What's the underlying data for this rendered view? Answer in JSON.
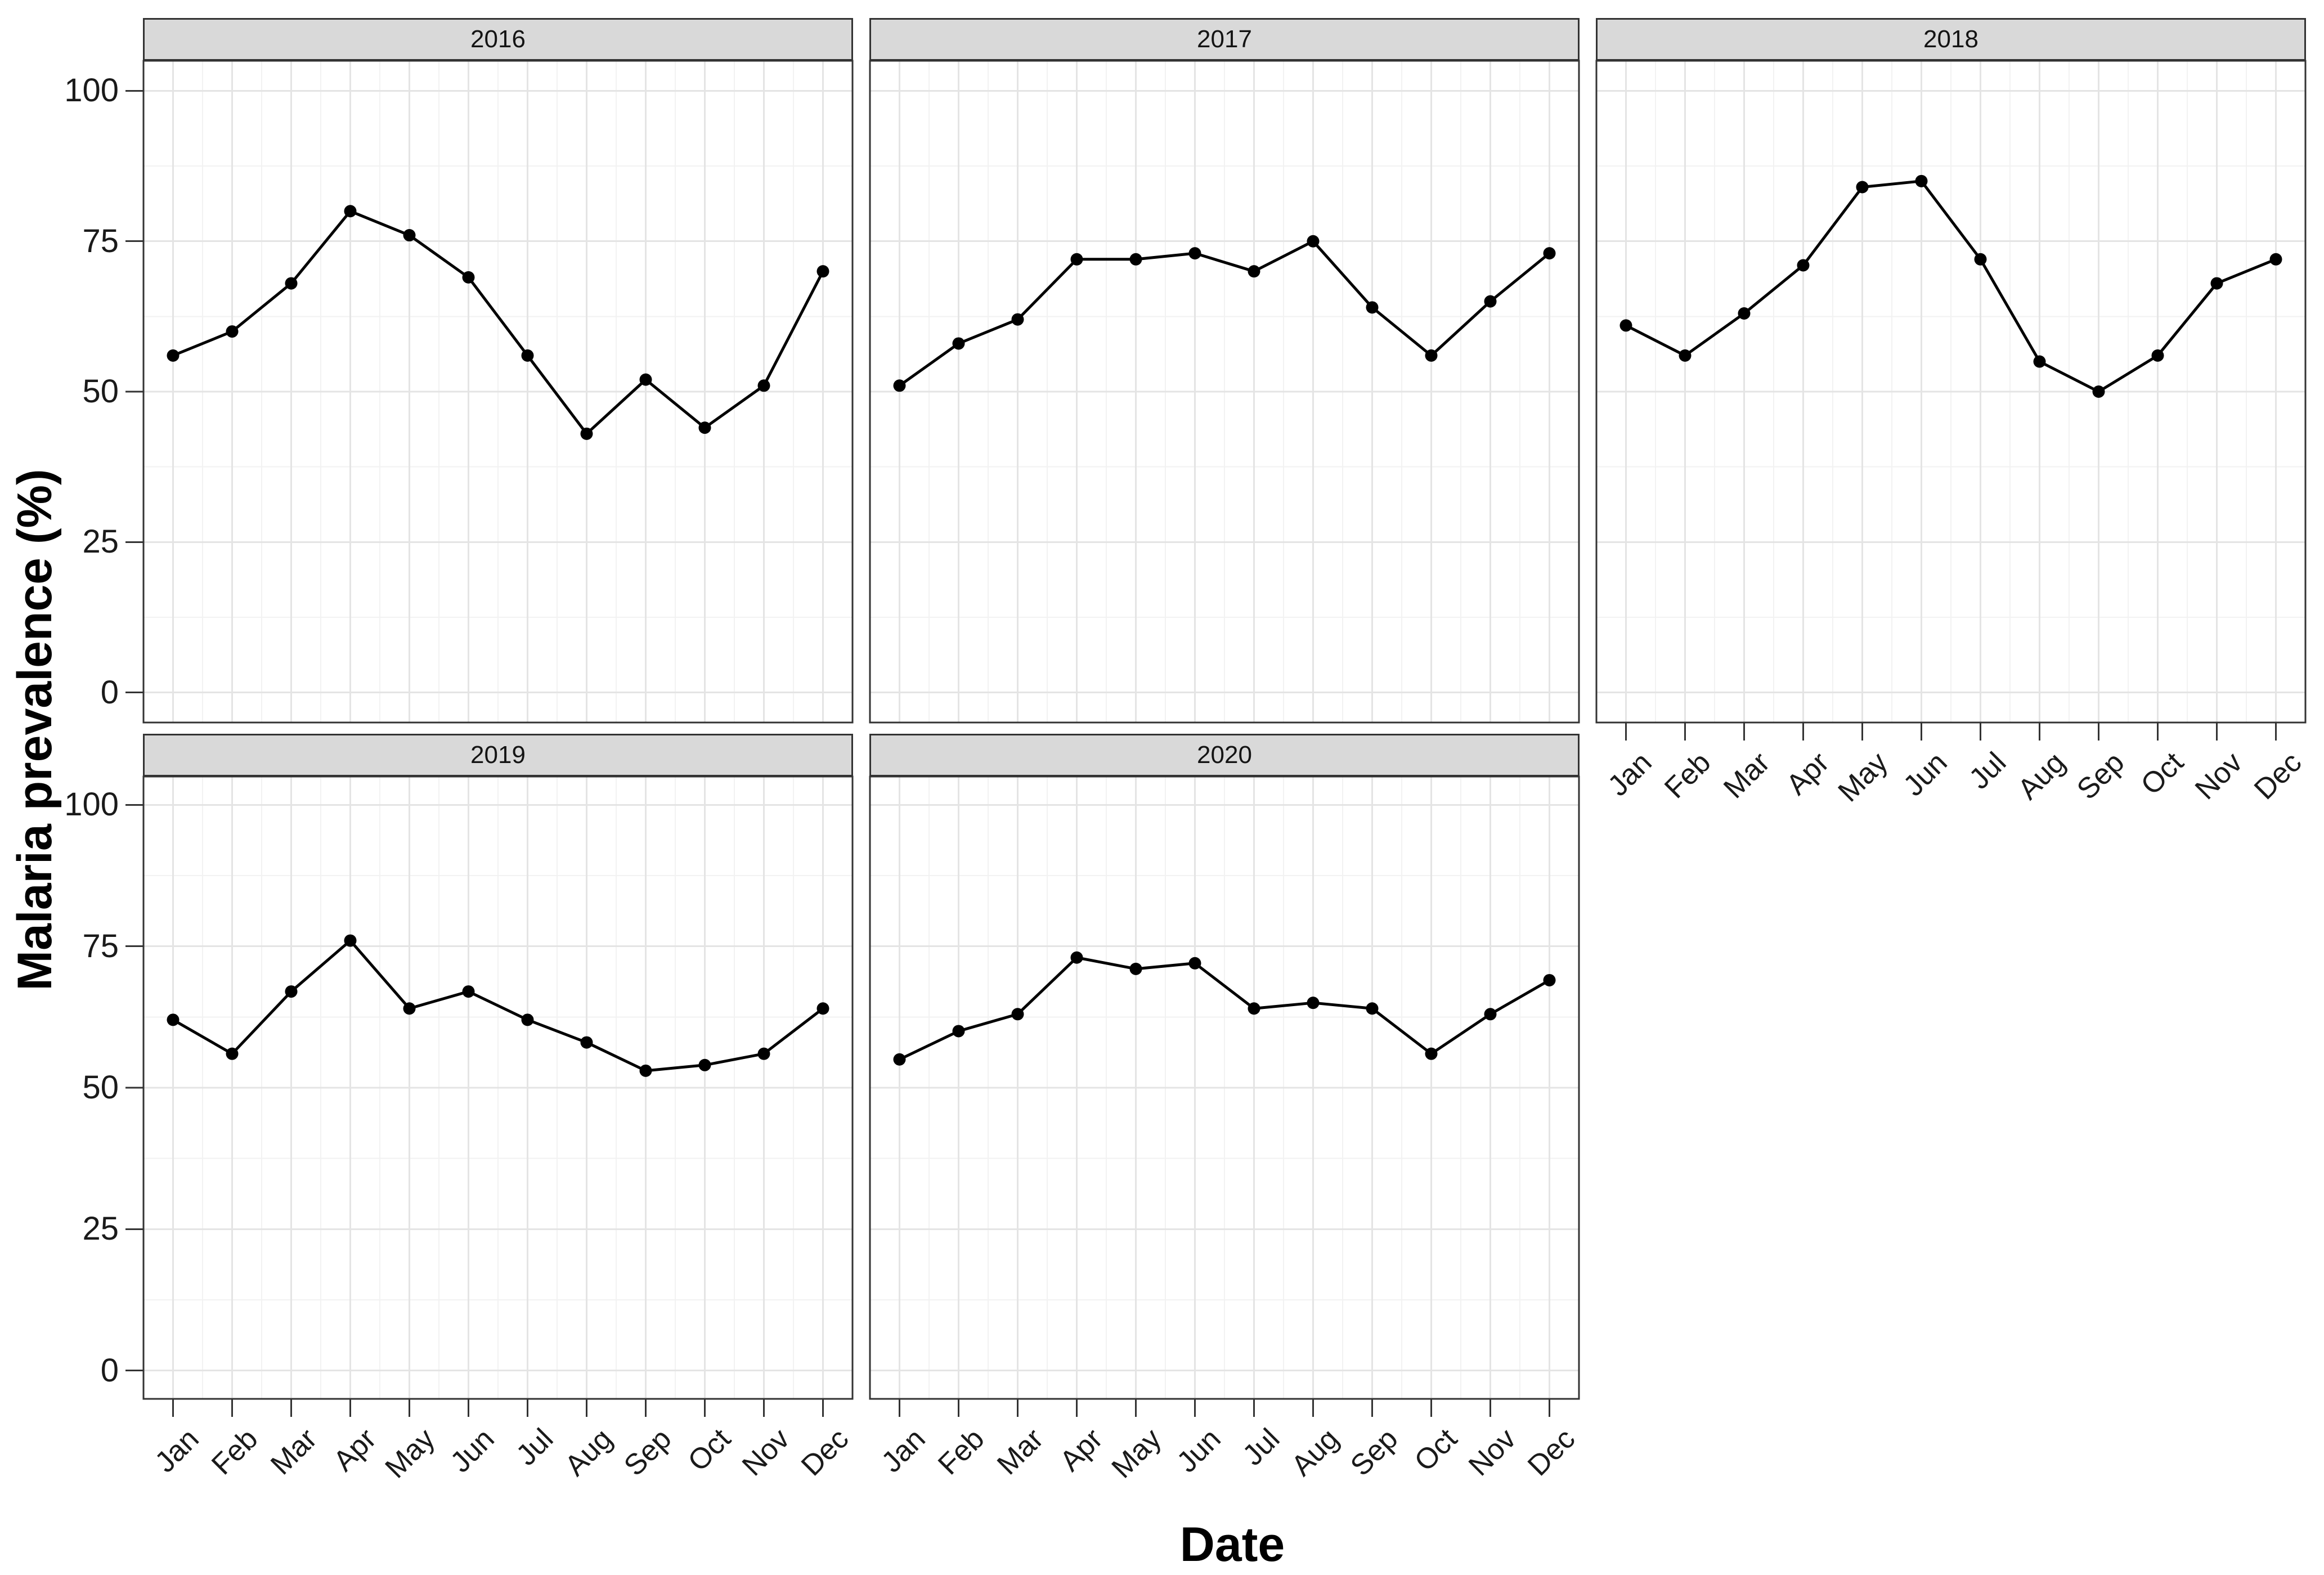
{
  "figure": {
    "x_title": "Date",
    "y_title": "Malaria prevalence (%)"
  },
  "chart_data": {
    "type": "line",
    "title": "",
    "xlabel": "Date",
    "ylabel": "Malaria prevalence (%)",
    "categories": [
      "Jan",
      "Feb",
      "Mar",
      "Apr",
      "May",
      "Jun",
      "Jul",
      "Aug",
      "Sep",
      "Oct",
      "Nov",
      "Dec"
    ],
    "yticks": [
      0,
      25,
      50,
      75,
      100
    ],
    "ylim": [
      0,
      100
    ],
    "y_expansion": [
      -5,
      105
    ],
    "grid": "major+minor",
    "legend_position": "none",
    "facet_variable": "year",
    "facets": [
      {
        "year": "2016",
        "values": [
          56,
          60,
          68,
          80,
          76,
          69,
          56,
          43,
          52,
          44,
          51,
          70
        ]
      },
      {
        "year": "2017",
        "values": [
          51,
          58,
          62,
          72,
          72,
          73,
          70,
          75,
          64,
          56,
          65,
          73
        ]
      },
      {
        "year": "2018",
        "values": [
          61,
          56,
          63,
          71,
          84,
          85,
          72,
          55,
          50,
          56,
          68,
          72
        ]
      },
      {
        "year": "2019",
        "values": [
          62,
          56,
          67,
          76,
          64,
          67,
          62,
          58,
          53,
          54,
          56,
          64
        ]
      },
      {
        "year": "2020",
        "values": [
          55,
          60,
          63,
          73,
          71,
          72,
          64,
          65,
          64,
          56,
          63,
          69
        ]
      }
    ],
    "colors": {
      "line": "#000000",
      "point": "#000000",
      "panel_bg": "#ffffff",
      "panel_border": "#333333",
      "strip_bg": "#d9d9d9",
      "strip_border": "#333333",
      "grid_major": "#e4e4e4",
      "grid_minor": "#f2f2f2",
      "tick_mark": "#333333",
      "tick_text": "#1a1a1a"
    }
  }
}
